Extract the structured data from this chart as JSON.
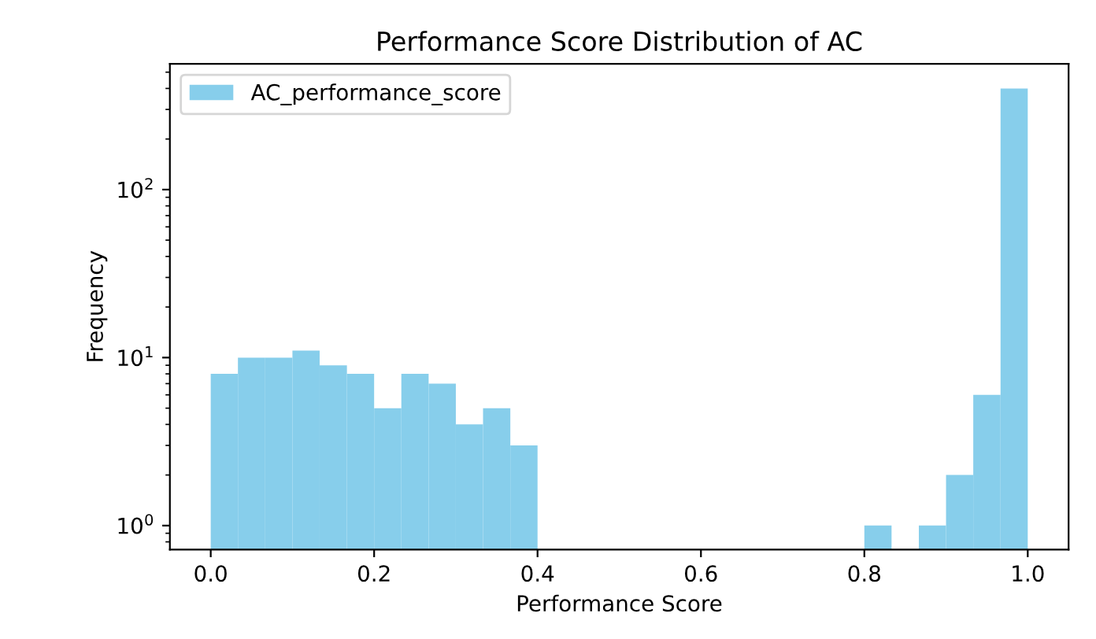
{
  "chart_data": {
    "type": "histogram",
    "title": "Performance Score Distribution of AC",
    "xlabel": "Performance Score",
    "ylabel": "Frequency",
    "bins": [
      0,
      0.0333,
      0.0667,
      0.1,
      0.1333,
      0.1667,
      0.2,
      0.2333,
      0.2667,
      0.3,
      0.3333,
      0.3667,
      0.4,
      0.4333,
      0.4667,
      0.5,
      0.5333,
      0.5667,
      0.6,
      0.6333,
      0.6667,
      0.7,
      0.7333,
      0.7667,
      0.8,
      0.8333,
      0.8667,
      0.9,
      0.9333,
      0.9667,
      1
    ],
    "series": [
      {
        "name": "AC_performance_score",
        "color": "#87ceeb",
        "values": [
          8,
          10,
          10,
          11,
          9,
          8,
          5,
          8,
          7,
          4,
          5,
          3,
          null,
          null,
          null,
          null,
          null,
          null,
          null,
          null,
          null,
          null,
          null,
          null,
          1,
          null,
          1,
          2,
          6,
          400
        ]
      }
    ],
    "log": "y",
    "xlim": [
      -0.05,
      1.05
    ],
    "ylim": [
      0.72,
      560
    ],
    "xticks": [
      {
        "value": 0,
        "label": "0.0"
      },
      {
        "value": 0.2,
        "label": "0.2"
      },
      {
        "value": 0.4,
        "label": "0.4"
      },
      {
        "value": 0.6,
        "label": "0.6"
      },
      {
        "value": 0.8,
        "label": "0.8"
      },
      {
        "value": 1,
        "label": "1.0"
      }
    ],
    "yticks": [
      {
        "value": 1,
        "label": "10$^{0}$"
      },
      {
        "value": 10,
        "label": "10$^{1}$"
      },
      {
        "value": 100,
        "label": "10$^{2}$"
      }
    ],
    "legend": "top left",
    "grid": false
  }
}
